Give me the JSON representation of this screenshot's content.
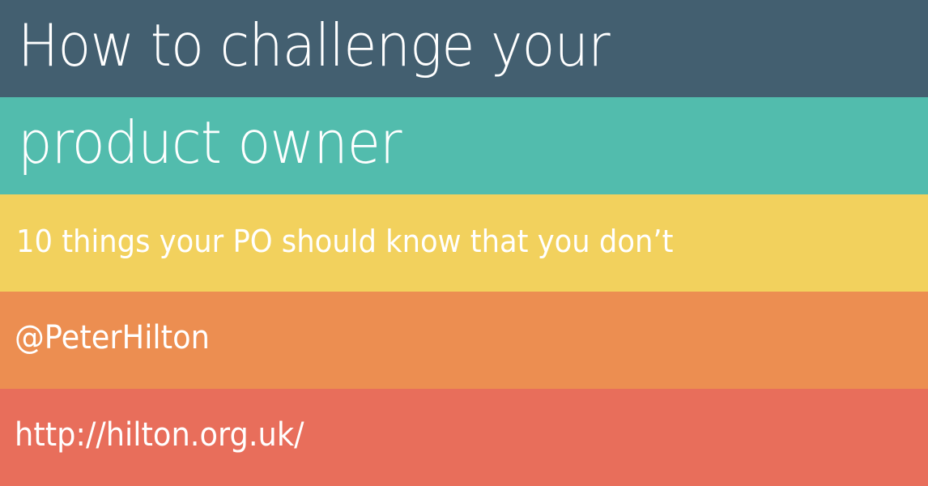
{
  "slide": {
    "title_line_1": "How to challenge your",
    "title_line_2": "product owner",
    "subtitle": "10 things your PO should know that you don’t",
    "twitter_handle": "@PeterHilton",
    "website_url": "http://hilton.org.uk/"
  },
  "colors": {
    "band_1": "#435f70",
    "band_2": "#52bcad",
    "band_3": "#f2d15d",
    "band_4": "#ec8e51",
    "band_5": "#e86e5b",
    "text": "#ffffff"
  }
}
